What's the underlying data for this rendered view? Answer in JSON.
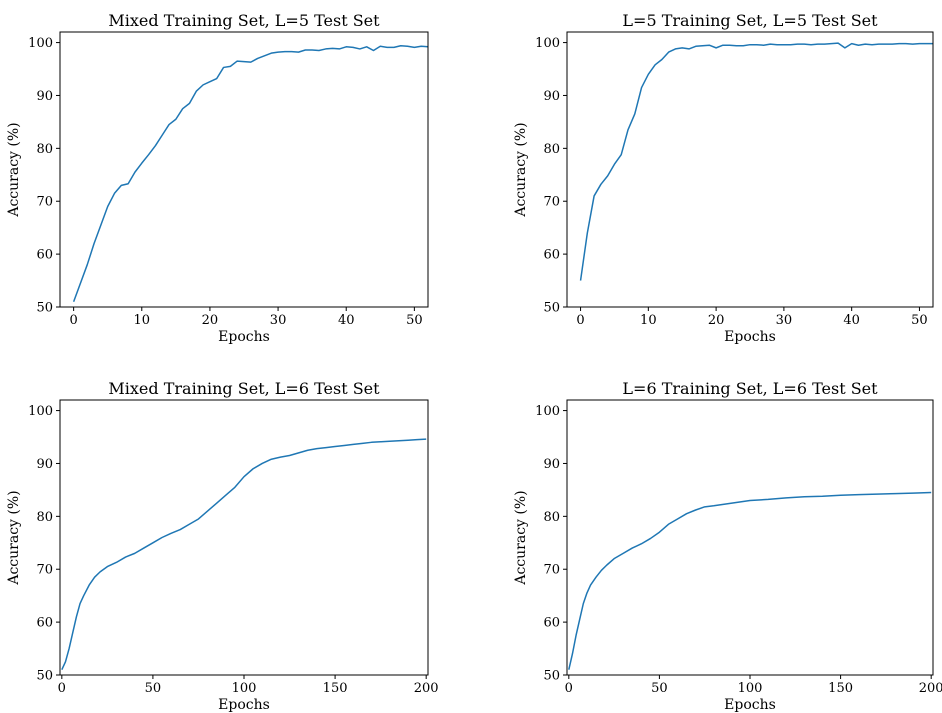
{
  "figure": {
    "background": "#ffffff",
    "series_color": "#1f77b4"
  },
  "chart_data": [
    {
      "type": "line",
      "title": "Mixed Training Set, L=5 Test Set",
      "xlabel": "Epochs",
      "ylabel": "Accuracy (%)",
      "xlim": [
        -2,
        52
      ],
      "ylim": [
        50,
        102
      ],
      "xticks": [
        0,
        10,
        20,
        30,
        40,
        50
      ],
      "yticks": [
        50,
        60,
        70,
        80,
        90,
        100
      ],
      "grid": false,
      "series": [
        {
          "x": [
            0,
            1,
            2,
            3,
            4,
            5,
            6,
            7,
            8,
            9,
            10,
            11,
            12,
            13,
            14,
            15,
            16,
            17,
            18,
            19,
            20,
            21,
            22,
            23,
            24,
            25,
            26,
            27,
            28,
            29,
            30,
            31,
            32,
            33,
            34,
            35,
            36,
            37,
            38,
            39,
            40,
            41,
            42,
            43,
            44,
            45,
            46,
            47,
            48,
            49,
            50,
            51,
            52
          ],
          "values": [
            51,
            54.5,
            58,
            62,
            65.5,
            69,
            71.5,
            73,
            73.3,
            75.5,
            77.2,
            78.8,
            80.5,
            82.5,
            84.5,
            85.5,
            87.5,
            88.5,
            90.8,
            92,
            92.6,
            93.2,
            95.3,
            95.5,
            96.5,
            96.4,
            96.3,
            97,
            97.5,
            98,
            98.2,
            98.3,
            98.3,
            98.2,
            98.6,
            98.6,
            98.5,
            98.8,
            98.9,
            98.8,
            99.2,
            99.1,
            98.8,
            99.2,
            98.5,
            99.3,
            99.1,
            99.1,
            99.4,
            99.3,
            99.1,
            99.3,
            99.2
          ]
        }
      ]
    },
    {
      "type": "line",
      "title": "L=5 Training Set, L=5 Test Set",
      "xlabel": "Epochs",
      "ylabel": "Accuracy (%)",
      "xlim": [
        -2,
        52
      ],
      "ylim": [
        50,
        102
      ],
      "xticks": [
        0,
        10,
        20,
        30,
        40,
        50
      ],
      "yticks": [
        50,
        60,
        70,
        80,
        90,
        100
      ],
      "grid": false,
      "series": [
        {
          "x": [
            0,
            1,
            2,
            3,
            4,
            5,
            6,
            7,
            8,
            9,
            10,
            11,
            12,
            13,
            14,
            15,
            16,
            17,
            18,
            19,
            20,
            21,
            22,
            23,
            24,
            25,
            26,
            27,
            28,
            29,
            30,
            31,
            32,
            33,
            34,
            35,
            36,
            37,
            38,
            39,
            40,
            41,
            42,
            43,
            44,
            45,
            46,
            47,
            48,
            49,
            50,
            51,
            52
          ],
          "values": [
            55,
            64,
            71,
            73.2,
            74.8,
            77,
            78.8,
            83.5,
            86.5,
            91.5,
            94,
            95.8,
            96.8,
            98.2,
            98.8,
            99,
            98.8,
            99.3,
            99.4,
            99.5,
            99,
            99.5,
            99.5,
            99.4,
            99.4,
            99.6,
            99.6,
            99.5,
            99.7,
            99.6,
            99.6,
            99.6,
            99.7,
            99.7,
            99.6,
            99.7,
            99.7,
            99.8,
            99.9,
            99,
            99.8,
            99.5,
            99.7,
            99.6,
            99.7,
            99.7,
            99.7,
            99.8,
            99.8,
            99.7,
            99.8,
            99.8,
            99.8
          ]
        }
      ]
    },
    {
      "type": "line",
      "title": "Mixed Training Set, L=6 Test Set",
      "xlabel": "Epochs",
      "ylabel": "Accuracy (%)",
      "xlim": [
        -1,
        201
      ],
      "ylim": [
        50,
        102
      ],
      "xticks": [
        0,
        50,
        100,
        150,
        200
      ],
      "yticks": [
        50,
        60,
        70,
        80,
        90,
        100
      ],
      "grid": false,
      "series": [
        {
          "x": [
            0,
            2,
            4,
            6,
            8,
            10,
            12,
            15,
            18,
            21,
            25,
            30,
            35,
            40,
            45,
            50,
            55,
            60,
            65,
            70,
            75,
            80,
            85,
            90,
            95,
            100,
            105,
            110,
            115,
            120,
            125,
            130,
            135,
            140,
            145,
            150,
            155,
            160,
            165,
            170,
            175,
            180,
            185,
            190,
            195,
            200
          ],
          "values": [
            51,
            52.5,
            55,
            58,
            61,
            63.5,
            65,
            67,
            68.5,
            69.5,
            70.5,
            71.3,
            72.3,
            73,
            74,
            75,
            76,
            76.8,
            77.5,
            78.5,
            79.5,
            81,
            82.5,
            84,
            85.5,
            87.5,
            89,
            90,
            90.8,
            91.2,
            91.5,
            92,
            92.5,
            92.8,
            93,
            93.2,
            93.4,
            93.6,
            93.8,
            94,
            94.1,
            94.2,
            94.3,
            94.4,
            94.5,
            94.6
          ]
        }
      ]
    },
    {
      "type": "line",
      "title": "L=6 Training Set, L=6 Test Set",
      "xlabel": "Epochs",
      "ylabel": "Accuracy (%)",
      "xlim": [
        -1,
        201
      ],
      "ylim": [
        50,
        102
      ],
      "xticks": [
        0,
        50,
        100,
        150,
        200
      ],
      "yticks": [
        50,
        60,
        70,
        80,
        90,
        100
      ],
      "grid": false,
      "series": [
        {
          "x": [
            0,
            2,
            4,
            6,
            8,
            10,
            12,
            15,
            18,
            21,
            25,
            30,
            35,
            40,
            45,
            50,
            55,
            60,
            65,
            70,
            75,
            80,
            90,
            100,
            110,
            120,
            130,
            140,
            150,
            160,
            170,
            180,
            190,
            200
          ],
          "values": [
            51,
            54,
            57.5,
            60.5,
            63.5,
            65.5,
            67,
            68.5,
            69.8,
            70.8,
            72,
            73,
            74,
            74.8,
            75.8,
            77,
            78.5,
            79.5,
            80.5,
            81.2,
            81.8,
            82,
            82.5,
            83,
            83.2,
            83.5,
            83.7,
            83.8,
            84,
            84.1,
            84.2,
            84.3,
            84.4,
            84.5
          ]
        }
      ]
    }
  ]
}
